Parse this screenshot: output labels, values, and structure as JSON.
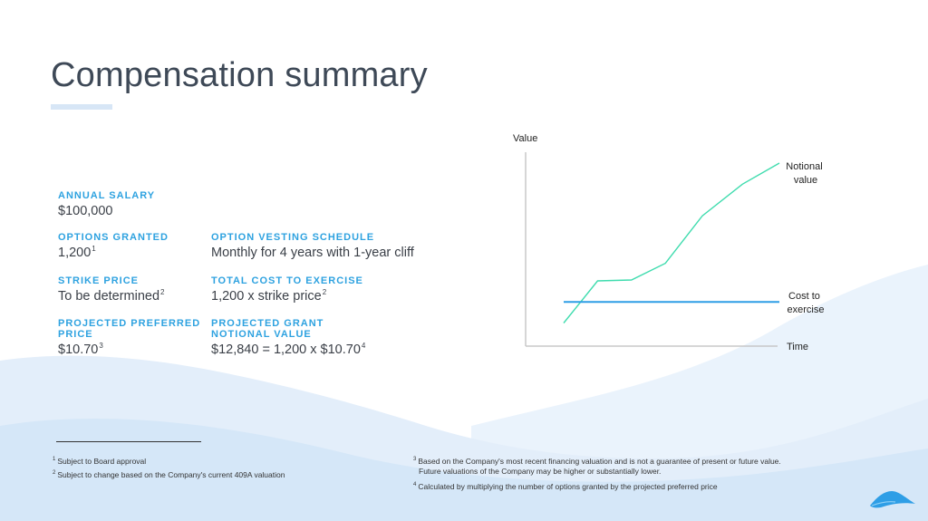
{
  "title": "Compensation summary",
  "fields": {
    "annual_salary": {
      "label": "ANNUAL SALARY",
      "value": "$100,000"
    },
    "options_granted": {
      "label": "OPTIONS GRANTED",
      "value": "1,200",
      "note": "1"
    },
    "vesting": {
      "label": "OPTION VESTING SCHEDULE",
      "value": "Monthly for 4 years with 1-year cliff"
    },
    "strike_price": {
      "label": "STRIKE PRICE",
      "value": "To be determined",
      "note": "2"
    },
    "total_cost": {
      "label": "TOTAL COST TO EXERCISE",
      "value": "1,200 x strike price",
      "note": "2"
    },
    "projected_preferred": {
      "label": "PROJECTED PREFERRED PRICE",
      "value": "$10.70",
      "note": "3"
    },
    "projected_grant": {
      "label": "PROJECTED GRANT NOTIONAL VALUE",
      "value": "$12,840 = 1,200 x $10.70",
      "note": "4"
    }
  },
  "chart_data": {
    "type": "line",
    "ylabel": "Value",
    "xlabel": "Time",
    "x": [
      0,
      1.1,
      2.2,
      3.3,
      4.5,
      5.8,
      7
    ],
    "xlim": [
      0,
      7
    ],
    "ylim": [
      0,
      10
    ],
    "series": [
      {
        "name": "Notional value",
        "values": [
          0.9,
          3.3,
          3.35,
          4.3,
          7.0,
          8.8,
          10
        ],
        "color": "#3fdcae"
      },
      {
        "name": "Cost to exercise",
        "values": [
          2.1,
          2.1,
          2.1,
          2.1,
          2.1,
          2.1,
          2.1
        ],
        "color": "#2e9ee6"
      }
    ],
    "labels": {
      "notional": [
        "Notional",
        "value"
      ],
      "cost": [
        "Cost to",
        "exercise"
      ]
    }
  },
  "footnotes": [
    {
      "num": "1",
      "text": "Subject to Board approval"
    },
    {
      "num": "2",
      "text": "Subject to change based on the Company's current 409A valuation"
    },
    {
      "num": "3",
      "text": "Based on the Company's most recent financing valuation and is not a guarantee of present or future value.",
      "text2": "Future valuations of the Company may be higher or substantially lower."
    },
    {
      "num": "4",
      "text": "Calculated by multiplying the number of options granted by the projected preferred price"
    }
  ],
  "colors": {
    "title": "#3e4957",
    "label": "#2ea2e0",
    "wave_light": "#eaf3fc",
    "wave_mid": "#d5e7f8",
    "logo": "#2e9ee6"
  }
}
